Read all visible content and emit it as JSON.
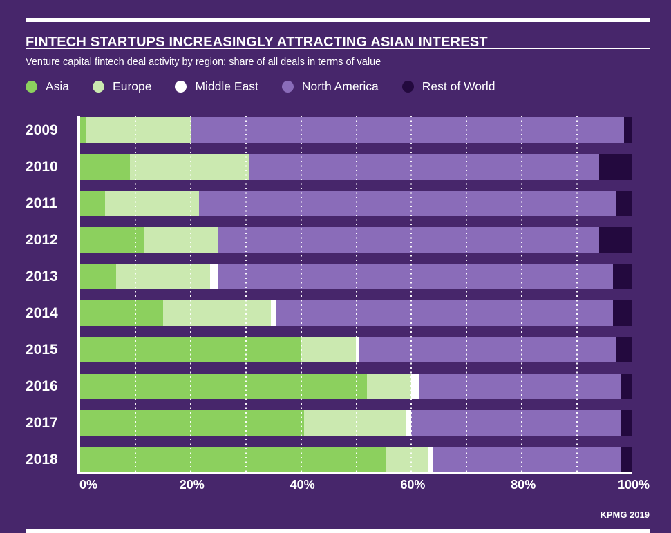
{
  "header": {
    "title": "FINTECH STARTUPS INCREASINGLY ATTRACTING ASIAN INTEREST",
    "subtitle": "Venture capital fintech deal activity by region; share of all deals in terms of value"
  },
  "source": "KPMG 2019",
  "colors": {
    "background": "#47266B",
    "text": "#FFFFFF",
    "axis": "#FFFFFF",
    "gridline": "#FFFFFF",
    "series": {
      "asia": "#8CD05E",
      "europe": "#CBE9B0",
      "middle_east": "#FFFFFF",
      "north_america": "#8A6CB9",
      "rest_of_world": "#23093E"
    }
  },
  "chart_data": {
    "type": "bar",
    "orientation": "horizontal",
    "stacked": true,
    "title": "FINTECH STARTUPS INCREASINGLY ATTRACTING ASIAN INTEREST",
    "subtitle": "Venture capital fintech deal activity by region; share of all deals in terms of value",
    "unit": "% share of all deals by value",
    "categories": [
      "2009",
      "2010",
      "2011",
      "2012",
      "2013",
      "2014",
      "2015",
      "2016",
      "2017",
      "2018"
    ],
    "series": [
      {
        "name": "Asia",
        "color_key": "asia",
        "values": [
          1,
          9,
          4.5,
          11.5,
          6.5,
          15,
          40,
          52,
          40.5,
          55.5
        ]
      },
      {
        "name": "Europe",
        "color_key": "europe",
        "values": [
          19,
          21.5,
          17,
          13.5,
          17,
          19.5,
          10,
          8,
          18.5,
          7.5
        ]
      },
      {
        "name": "Middle East",
        "color_key": "middle_east",
        "values": [
          0,
          0,
          0,
          0,
          1.5,
          1,
          0.5,
          1.5,
          1,
          1
        ]
      },
      {
        "name": "North America",
        "color_key": "north_america",
        "values": [
          78.5,
          63.5,
          75.5,
          69,
          71.5,
          61,
          46.5,
          36.5,
          38,
          34
        ]
      },
      {
        "name": "Rest of World",
        "color_key": "rest_of_world",
        "values": [
          1.5,
          6,
          3,
          6,
          3.5,
          3.5,
          3,
          2,
          2,
          2
        ]
      }
    ],
    "x_axis": {
      "range": [
        0,
        100
      ],
      "ticks": [
        0,
        20,
        40,
        60,
        80,
        100
      ],
      "tick_labels": [
        "0%",
        "20%",
        "40%",
        "60%",
        "80%",
        "100%"
      ]
    },
    "gridlines_at": [
      10,
      20,
      30,
      40,
      50,
      60,
      70,
      80,
      90
    ],
    "grid": "dotted-vertical-white",
    "legend_position": "top"
  }
}
